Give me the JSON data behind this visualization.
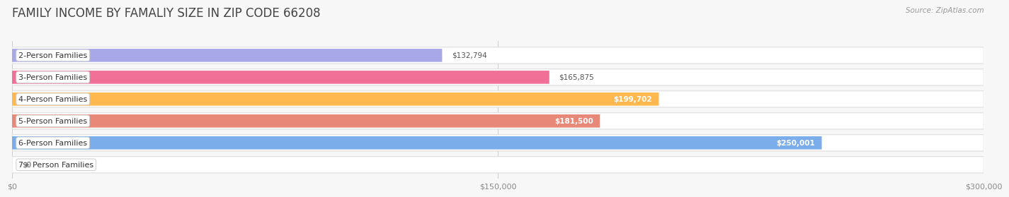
{
  "title": "FAMILY INCOME BY FAMALIY SIZE IN ZIP CODE 66208",
  "source": "Source: ZipAtlas.com",
  "categories": [
    "2-Person Families",
    "3-Person Families",
    "4-Person Families",
    "5-Person Families",
    "6-Person Families",
    "7+ Person Families"
  ],
  "values": [
    132794,
    165875,
    199702,
    181500,
    250001,
    0
  ],
  "bar_colors": [
    "#a8a8e8",
    "#f07098",
    "#ffb84d",
    "#e88878",
    "#7aadea",
    "#c8b0d8"
  ],
  "value_labels": [
    "$132,794",
    "$165,875",
    "$199,702",
    "$181,500",
    "$250,001",
    "$0"
  ],
  "label_inside": [
    false,
    false,
    true,
    true,
    true,
    false
  ],
  "xlim": [
    0,
    300000
  ],
  "xticklabels": [
    "$0",
    "$150,000",
    "$300,000"
  ],
  "bg_color": "#f7f7f7",
  "bar_bg_color": "#e6e6e6",
  "title_fontsize": 12,
  "label_fontsize": 8,
  "value_fontsize": 7.5
}
